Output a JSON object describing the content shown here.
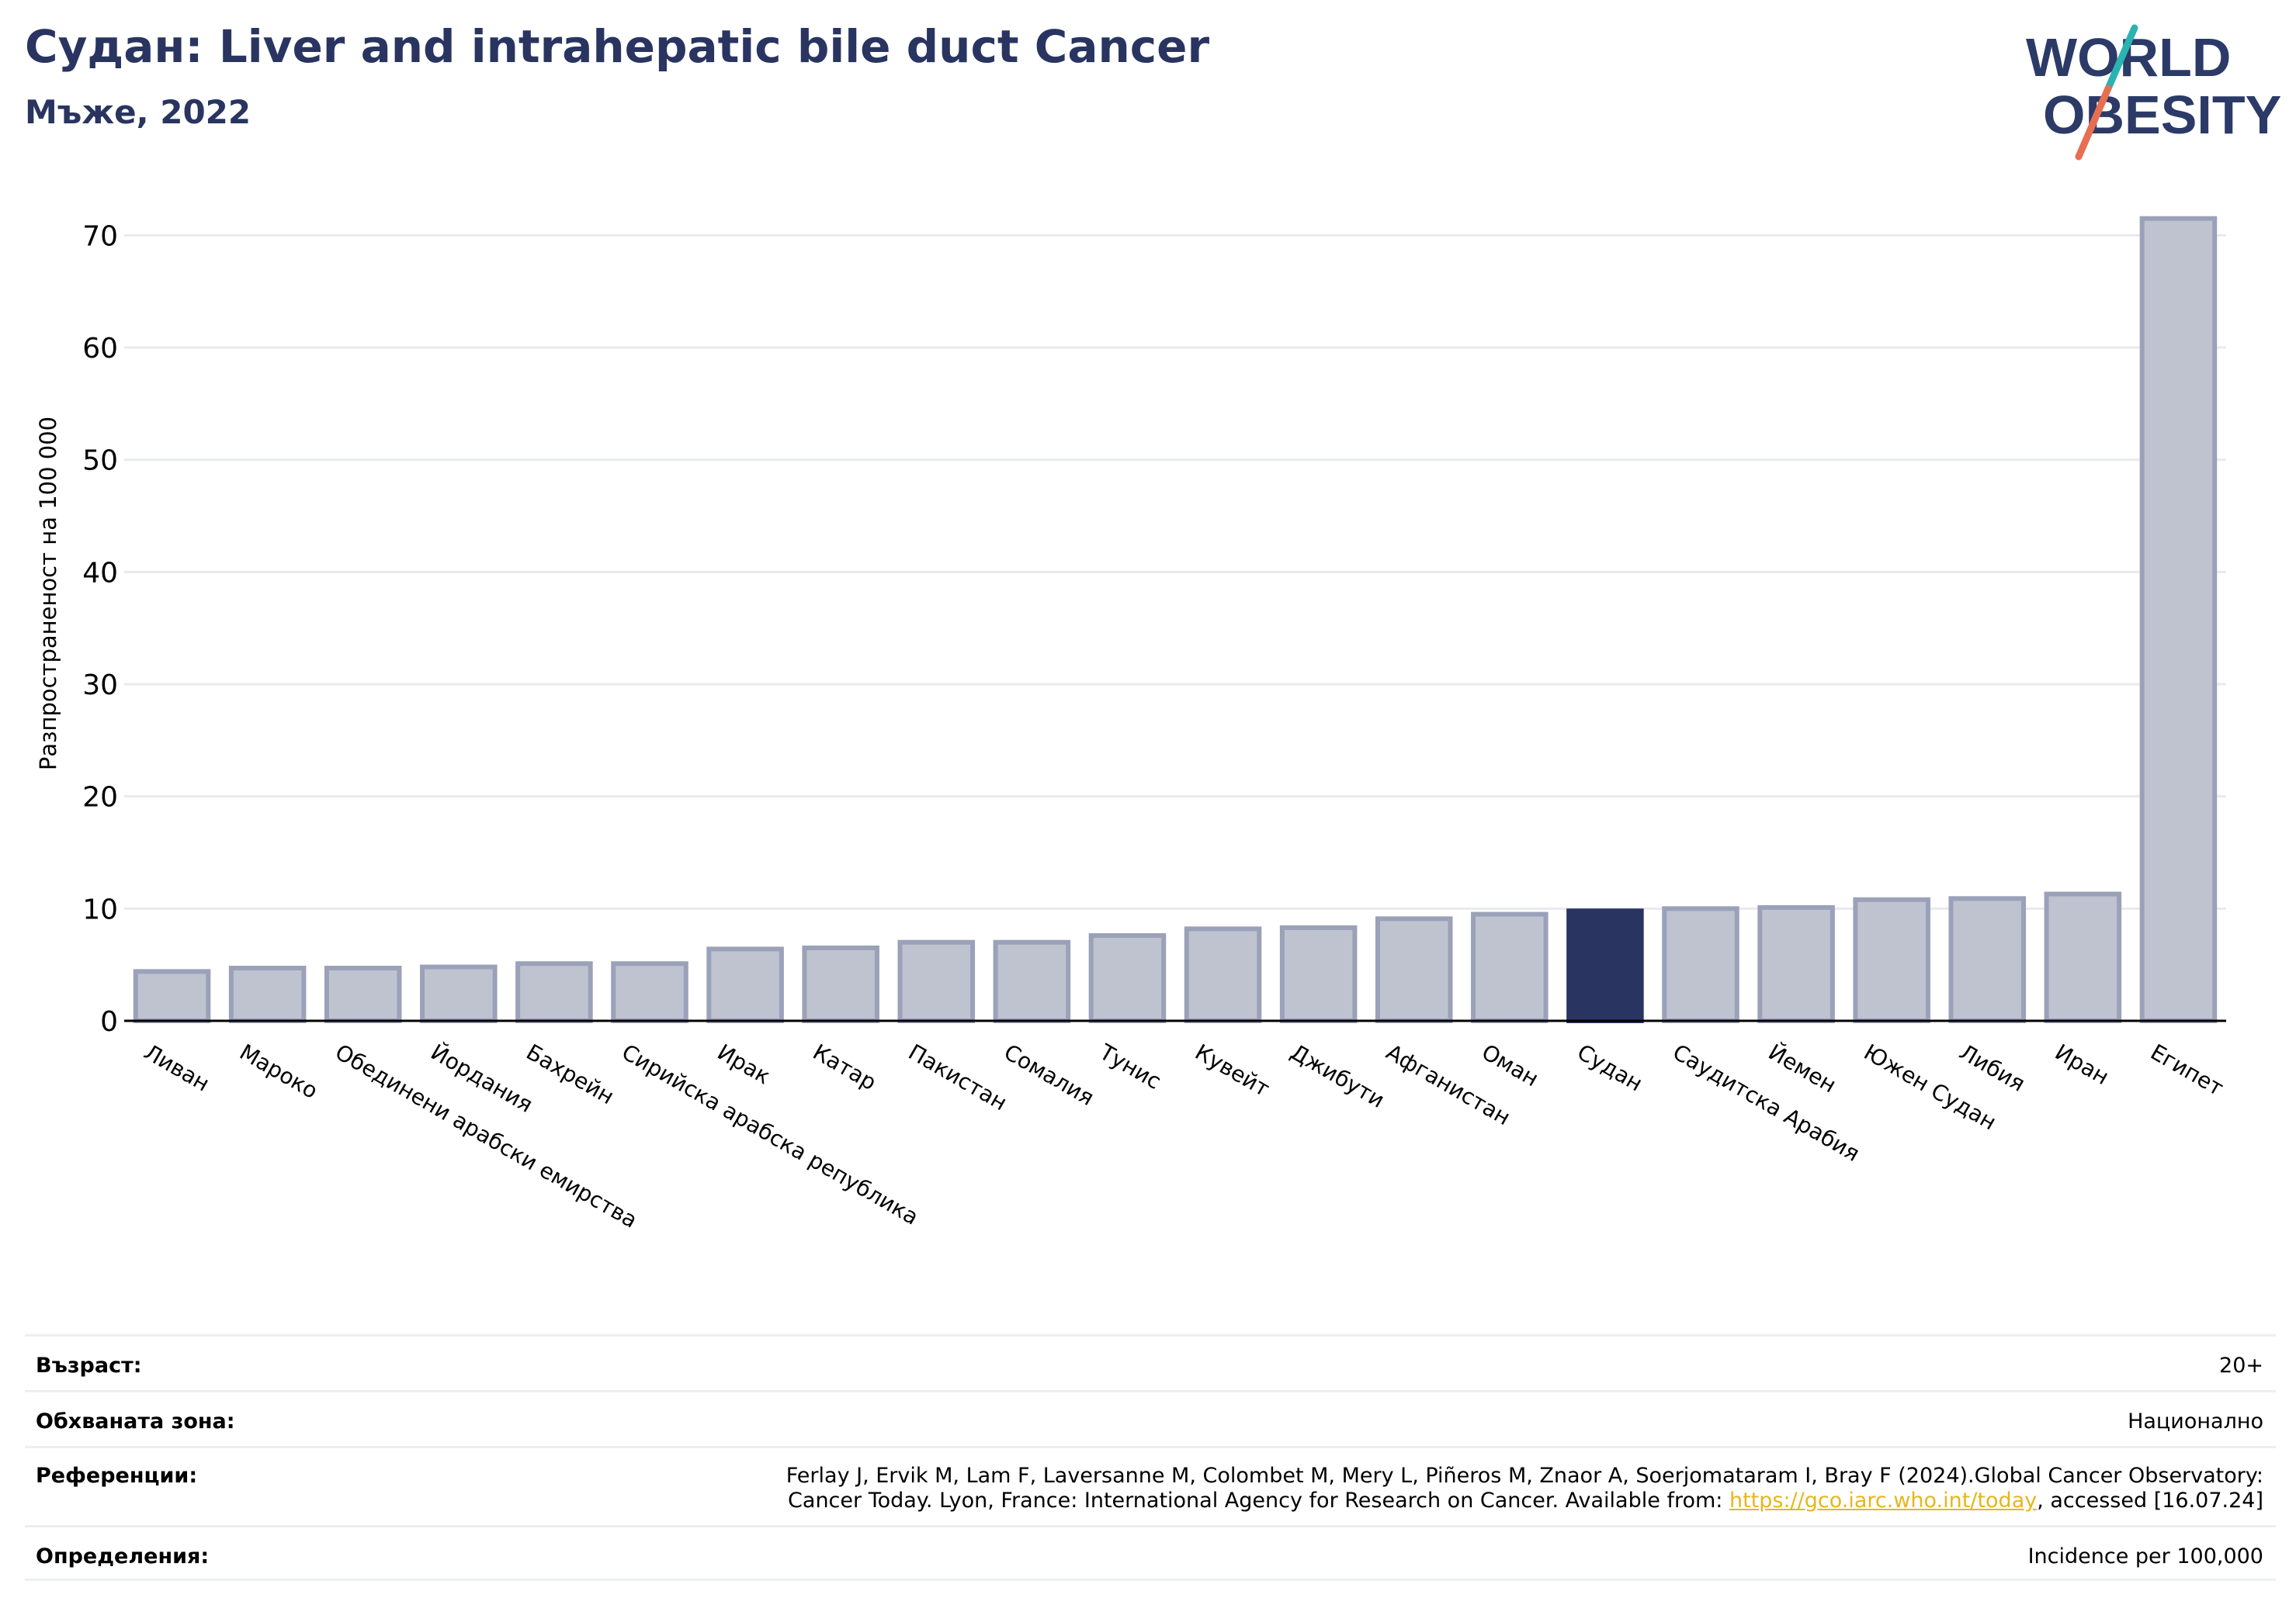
{
  "header": {
    "title": "Судан: Liver and intrahepatic bile duct Cancer",
    "subtitle": "Мъже, 2022"
  },
  "logo": {
    "line1": "WORLD",
    "line2": "OBESITY",
    "colors": {
      "text": "#2b3a67",
      "slash_top": "#2bb3b1",
      "slash_bottom": "#e76f51"
    }
  },
  "colors": {
    "highlight": "#293560",
    "bar_fill": "#bfc3d0",
    "bar_stroke": "#9aa1b8",
    "grid": "#e8eaf0",
    "axis": "#000000",
    "link": "#e8b51c"
  },
  "chart_data": {
    "type": "bar",
    "title": "",
    "ylabel": "Разпространеност  на 100 000",
    "xlabel": "",
    "ylim": [
      0,
      73
    ],
    "yticks": [
      0,
      10,
      20,
      30,
      40,
      50,
      60,
      70
    ],
    "grid": true,
    "highlight": "Судан",
    "categories": [
      "Ливан",
      "Мароко",
      "Обединени арабски емирства",
      "Йордания",
      "Бахрейн",
      "Сирийска арабска република",
      "Ирак",
      "Катар",
      "Пакистан",
      "Сомалия",
      "Тунис",
      "Кувейт",
      "Джибути",
      "Афганистан",
      "Оман",
      "Судан",
      "Саудитска Арабия",
      "Йемен",
      "Южен Судан",
      "Либия",
      "Иран",
      "Египет"
    ],
    "values": [
      4.4,
      4.7,
      4.7,
      4.8,
      5.1,
      5.1,
      6.4,
      6.5,
      7.0,
      7.0,
      7.6,
      8.2,
      8.3,
      9.1,
      9.5,
      9.8,
      10.0,
      10.1,
      10.8,
      10.9,
      11.3,
      71.5
    ]
  },
  "footer": {
    "age_label": "Възраст:",
    "age_value": "20+",
    "area_label": "Обхваната зона:",
    "area_value": "Национално",
    "refs_label": "Референции:",
    "refs_line1": "Ferlay J, Ervik M, Lam F, Laversanne M, Colombet M, Mery L, Piñeros M, Znaor A, Soerjomataram I, Bray F (2024).Global Cancer Observatory:",
    "refs_line2_pre": "Cancer Today. Lyon, France: International Agency for Research on Cancer. Available from: ",
    "refs_link": "https://gco.iarc.who.int/today",
    "refs_line2_post": ", accessed [16.07.24]",
    "defs_label": "Определения:",
    "defs_value": "Incidence per 100,000"
  }
}
